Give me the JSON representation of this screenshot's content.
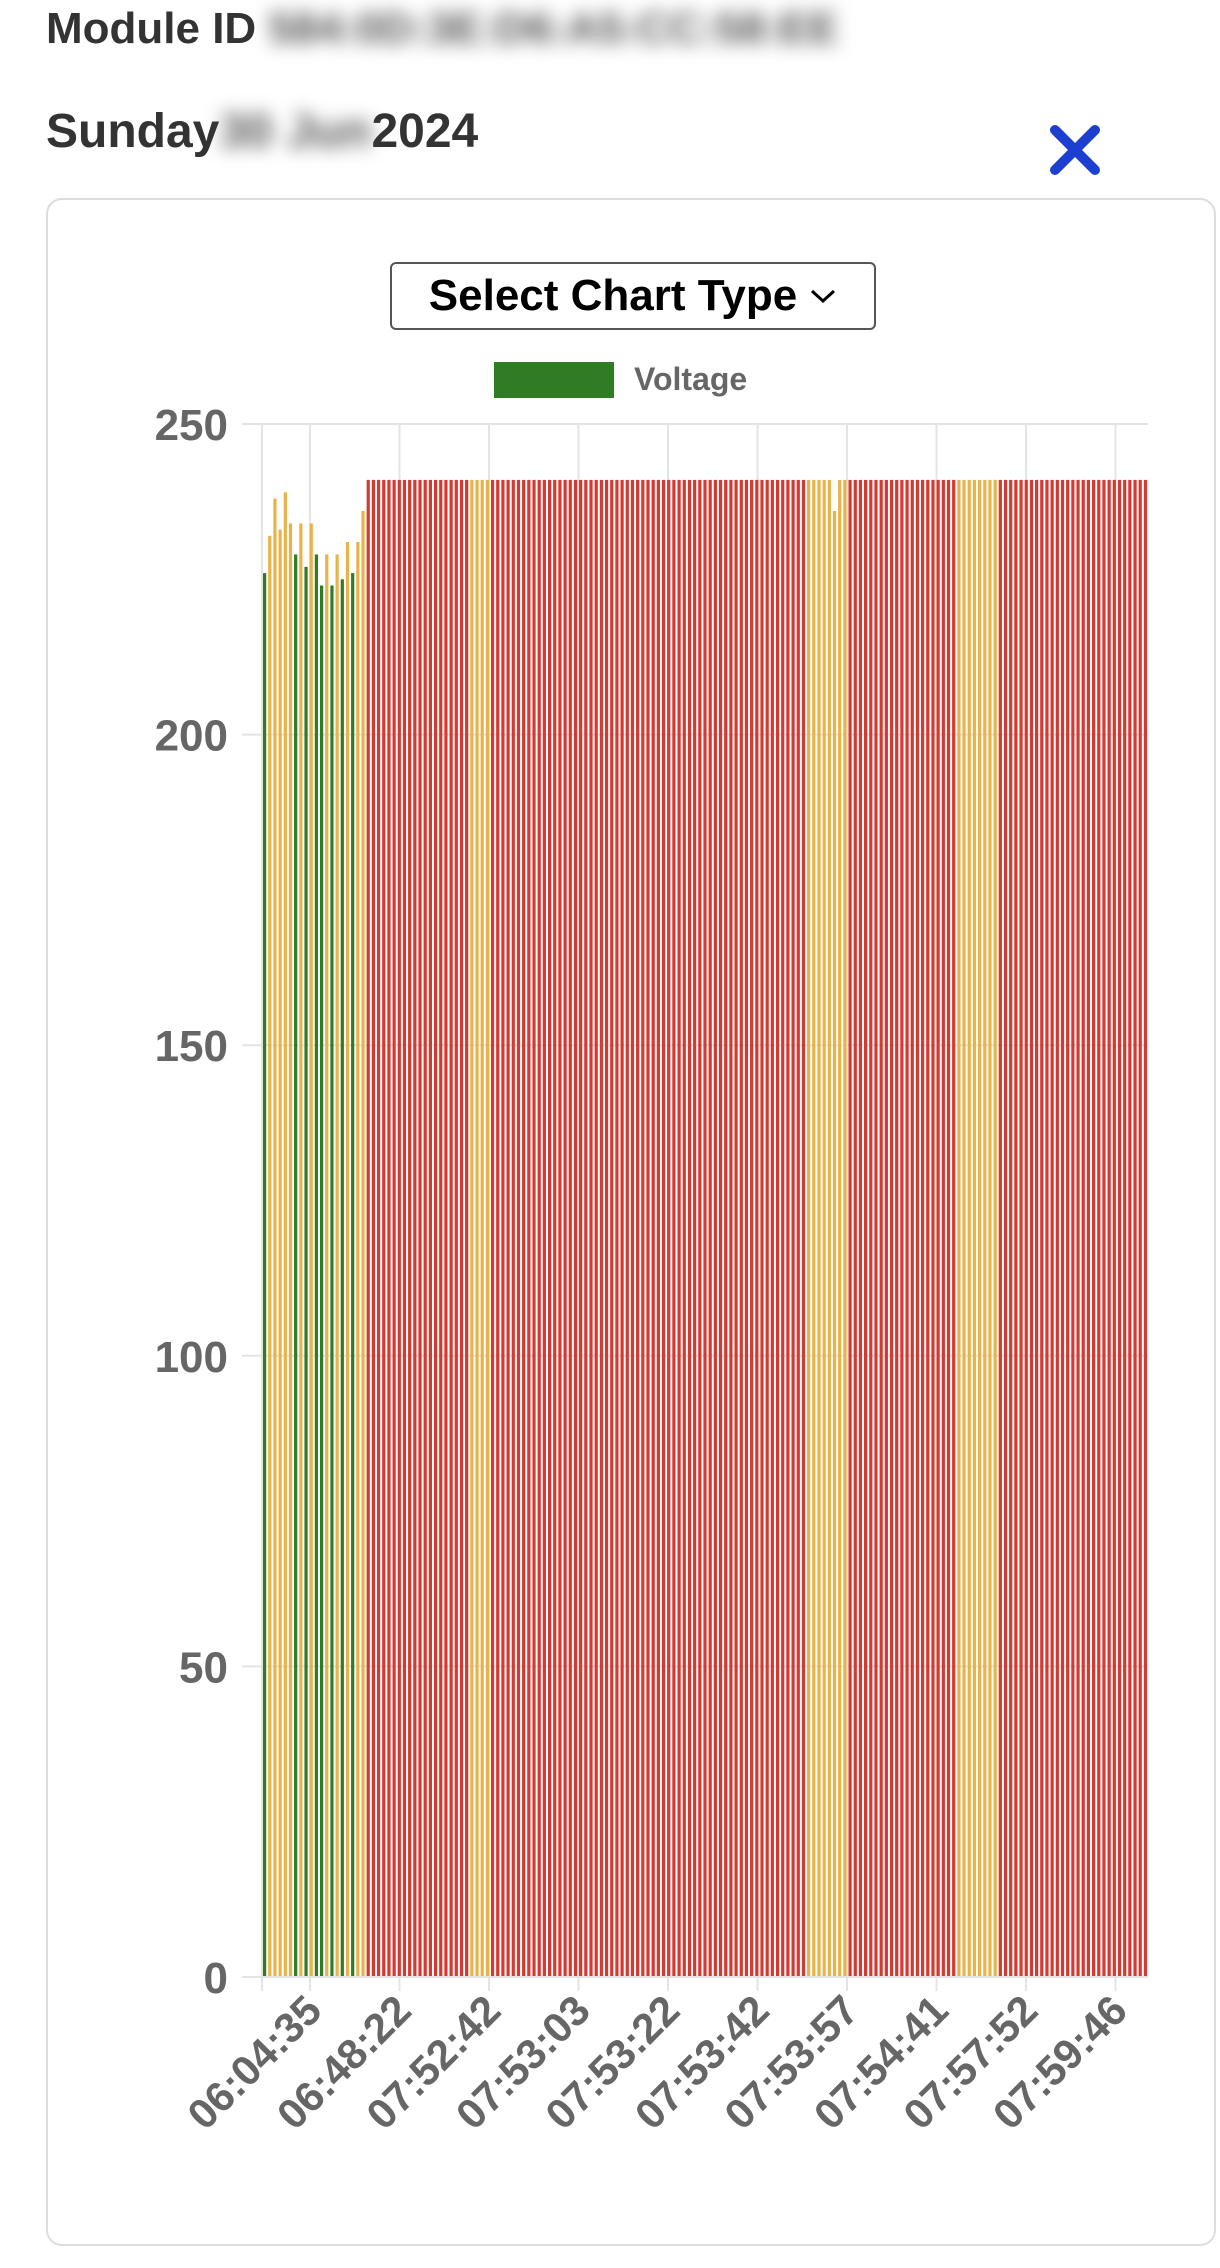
{
  "header": {
    "module_label": "Module ID",
    "module_value": "584:0D:3E:D6:A5:CC:58:EE",
    "day_label": "Sunday",
    "date_hidden": "30 Jun",
    "year": "2024"
  },
  "controls": {
    "select_chart_type": "Select Chart Type",
    "close_icon": "close-x-icon"
  },
  "colors": {
    "green": "#2e7d23",
    "yellow": "#e8b44a",
    "red": "#d53a32",
    "close": "#1d3fd1"
  },
  "chart_data": {
    "type": "bar",
    "legend": [
      "Voltage"
    ],
    "ylim": [
      0,
      250
    ],
    "yticks": [
      0,
      50,
      100,
      150,
      200,
      250
    ],
    "xtick_labels": [
      "06:04:35",
      "06:48:22",
      "07:52:42",
      "07:53:03",
      "07:53:22",
      "07:53:42",
      "07:53:57",
      "07:54:41",
      "07:57:52",
      "07:59:46"
    ],
    "grid": true,
    "series": [
      {
        "name": "Voltage",
        "values": [
          226,
          232,
          238,
          233,
          239,
          234,
          229,
          234,
          227,
          234,
          229,
          224,
          229,
          224,
          229,
          225,
          231,
          226,
          231,
          236,
          241,
          241,
          241,
          241,
          241,
          241,
          241,
          241,
          241,
          241,
          241,
          241,
          241,
          241,
          241,
          241,
          241,
          241,
          241,
          241,
          241,
          241,
          241,
          241,
          241,
          241,
          241,
          241,
          241,
          241,
          241,
          241,
          241,
          241,
          241,
          241,
          241,
          241,
          241,
          241,
          241,
          241,
          241,
          241,
          241,
          241,
          241,
          241,
          241,
          241,
          241,
          241,
          241,
          241,
          241,
          241,
          241,
          241,
          241,
          241,
          241,
          241,
          241,
          241,
          241,
          241,
          241,
          241,
          241,
          241,
          241,
          241,
          241,
          241,
          241,
          241,
          241,
          241,
          241,
          241,
          241,
          241,
          241,
          241,
          241,
          241,
          241,
          241,
          241,
          241,
          236,
          241,
          241,
          241,
          241,
          241,
          241,
          241,
          241,
          241,
          241,
          241,
          241,
          241,
          241,
          241,
          241,
          241,
          241,
          241,
          241,
          241,
          241,
          241,
          241,
          241,
          241,
          241,
          241,
          241,
          241,
          241,
          241,
          241,
          241,
          241,
          241,
          241,
          241,
          241,
          241,
          241,
          241,
          241,
          241,
          241,
          241,
          241,
          241,
          241,
          241,
          241,
          241,
          241,
          241,
          241,
          241,
          241,
          241,
          241,
          241
        ]
      }
    ],
    "bar_colors": [
      "green",
      "yellow",
      "yellow",
      "yellow",
      "yellow",
      "yellow",
      "green",
      "yellow",
      "green",
      "yellow",
      "green",
      "green",
      "yellow",
      "green",
      "yellow",
      "green",
      "yellow",
      "green",
      "yellow",
      "yellow",
      "red",
      "red",
      "red",
      "red",
      "red",
      "red",
      "red",
      "red",
      "red",
      "red",
      "red",
      "red",
      "red",
      "red",
      "red",
      "red",
      "red",
      "red",
      "red",
      "red",
      "yellow",
      "yellow",
      "yellow",
      "yellow",
      "red",
      "red",
      "red",
      "red",
      "red",
      "red",
      "red",
      "red",
      "red",
      "red",
      "red",
      "red",
      "red",
      "red",
      "red",
      "red",
      "red",
      "red",
      "red",
      "red",
      "red",
      "red",
      "red",
      "red",
      "red",
      "red",
      "red",
      "red",
      "red",
      "red",
      "red",
      "red",
      "red",
      "red",
      "red",
      "red",
      "red",
      "red",
      "red",
      "red",
      "red",
      "red",
      "red",
      "red",
      "red",
      "red",
      "red",
      "red",
      "red",
      "red",
      "red",
      "red",
      "red",
      "red",
      "red",
      "red",
      "red",
      "red",
      "red",
      "red",
      "red",
      "yellow",
      "yellow",
      "yellow",
      "yellow",
      "yellow",
      "yellow",
      "yellow",
      "yellow",
      "red",
      "red",
      "red",
      "red",
      "red",
      "red",
      "red",
      "red",
      "red",
      "red",
      "red",
      "red",
      "red",
      "red",
      "red",
      "red",
      "red",
      "red",
      "red",
      "red",
      "red",
      "yellow",
      "yellow",
      "yellow",
      "yellow",
      "yellow",
      "yellow",
      "yellow",
      "yellow",
      "red",
      "red",
      "red",
      "red",
      "red",
      "red",
      "red",
      "red",
      "red",
      "red",
      "red",
      "red",
      "red",
      "red",
      "red",
      "red",
      "red",
      "red",
      "red",
      "red",
      "red",
      "red",
      "red",
      "red",
      "red",
      "red",
      "red",
      "red",
      "red",
      "red",
      "red",
      "red",
      "red",
      "red",
      "red"
    ]
  }
}
